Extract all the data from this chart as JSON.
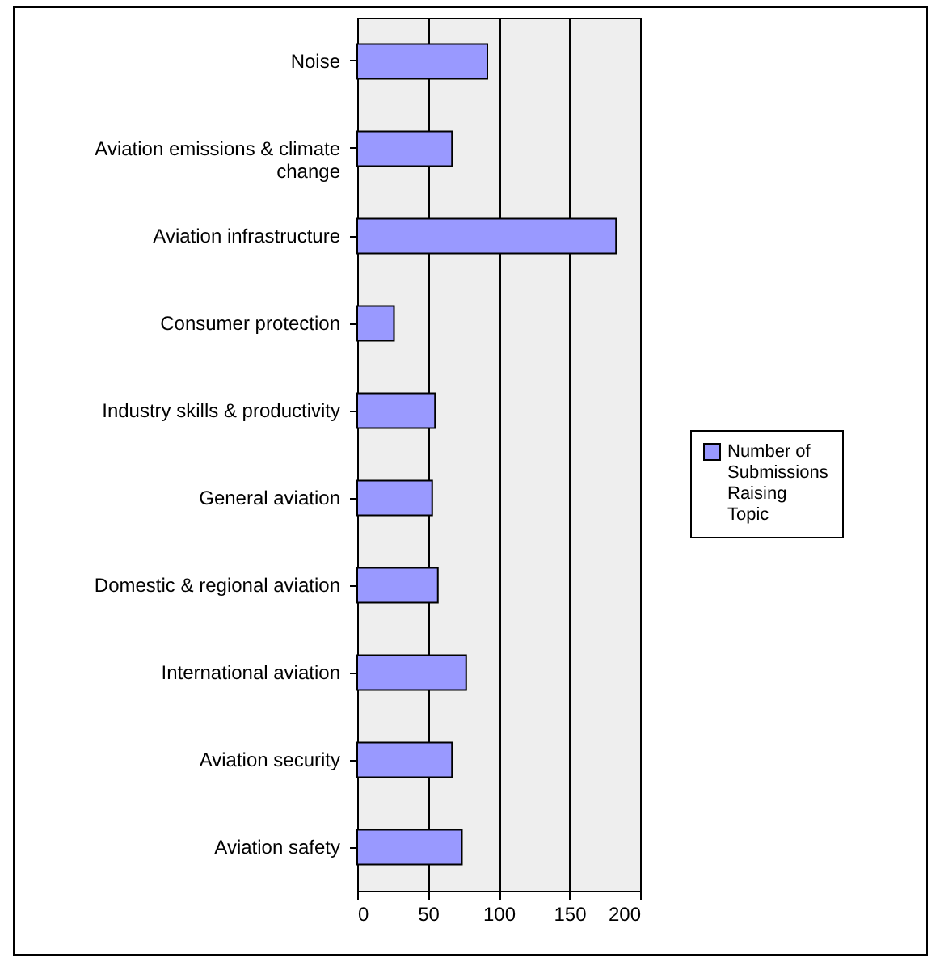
{
  "chart_data": {
    "type": "bar",
    "orientation": "horizontal",
    "categories": [
      "Noise",
      "Aviation emissions & climate change",
      "Aviation infrastructure",
      "Consumer protection",
      "Industry skills & productivity",
      "General aviation",
      "Domestic & regional aviation",
      "International aviation",
      "Aviation security",
      "Aviation safety"
    ],
    "series": [
      {
        "name": "Number of Submissions Raising Topic",
        "color": "#9999ff",
        "values": [
          92,
          67,
          183,
          26,
          55,
          53,
          57,
          77,
          67,
          74
        ]
      }
    ],
    "xlim": [
      0,
      200
    ],
    "xticks": [
      0,
      50,
      100,
      150,
      200
    ],
    "grid": "x",
    "legend": "right"
  }
}
